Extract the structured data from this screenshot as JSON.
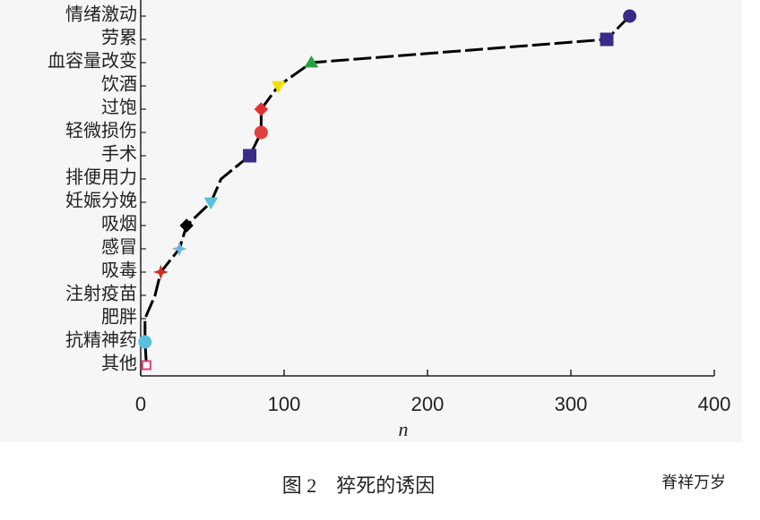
{
  "chart_data": {
    "type": "line",
    "caption": "图 2　猝死的诱因",
    "watermark": "脊祥万岁",
    "xlabel": "n",
    "categories": [
      "情绪激动",
      "劳累",
      "血容量改变",
      "饮酒",
      "过饱",
      "轻微损伤",
      "手术",
      "排便用力",
      "妊娠分娩",
      "吸烟",
      "感冒",
      "吸毒",
      "注射疫苗",
      "肥胖",
      "抗精神药",
      "其他"
    ],
    "series": [
      {
        "color": "#000000",
        "values": [
          341,
          325,
          119,
          96,
          84,
          84,
          76,
          56,
          49,
          32,
          27,
          14,
          10,
          3,
          3,
          4
        ],
        "marker_colors": [
          "#3a2a8a",
          "#3a2a8a",
          "#2aa040",
          "#f0e000",
          "#e03030",
          "#e04040",
          "#3a2a8a",
          null,
          "#5bc0de",
          "#000000",
          "#6cb6e0",
          "#d03020",
          null,
          null,
          "#5bc0de",
          "#e0407a"
        ],
        "markers": [
          "circle",
          "square",
          "triangle",
          "triangle-down",
          "diamond",
          "circle",
          "square",
          null,
          "triangle-down",
          "diamond",
          "star",
          "star",
          null,
          null,
          "circle",
          "square-open"
        ]
      }
    ],
    "xlim": [
      0,
      400
    ],
    "xticks": [
      0,
      100,
      200,
      300,
      400
    ]
  }
}
